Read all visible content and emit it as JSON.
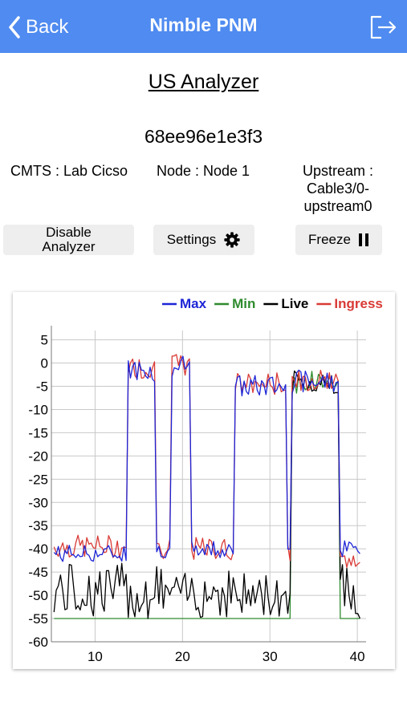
{
  "navbar": {
    "back_label": "Back",
    "title": "Nimble PNM",
    "back_icon": "chevron-left-icon",
    "logout_icon": "logout-icon",
    "background_color": "#4f8bf0"
  },
  "page": {
    "title": "US Analyzer",
    "device_id": "68ee96e1e3f3"
  },
  "info": {
    "cmts": "CMTS : Lab Cicso",
    "node": "Node : Node 1",
    "upstream_line1": "Upstream :",
    "upstream_line2": "Cable3/0-",
    "upstream_line3": "upstream0"
  },
  "buttons": {
    "disable_line1": "Disable",
    "disable_line2": "Analyzer",
    "settings": "Settings",
    "settings_icon": "gear-icon",
    "freeze": "Freeze",
    "freeze_icon": "pause-icon"
  },
  "chart_data": {
    "type": "line",
    "xlim": [
      5,
      41
    ],
    "ylim": [
      -60,
      7
    ],
    "x_ticks": [
      10,
      20,
      30,
      40
    ],
    "y_ticks": [
      5,
      0,
      -5,
      -10,
      -15,
      -20,
      -25,
      -30,
      -35,
      -40,
      -45,
      -50,
      -55,
      -60
    ],
    "grid": true,
    "legend_position": "top-right",
    "series": [
      {
        "name": "Max",
        "color": "#1d25d6"
      },
      {
        "name": "Min",
        "color": "#2e8b2e"
      },
      {
        "name": "Live",
        "color": "#000000"
      },
      {
        "name": "Ingress",
        "color": "#d93a36"
      }
    ],
    "shape": {
      "start": 5.3,
      "end": 40.5,
      "step": 0.25,
      "noise_floor": -55,
      "carriers": [
        {
          "start": 13.8,
          "end": 17.0,
          "level": -1.5
        },
        {
          "start": 18.8,
          "end": 20.8,
          "level": -1.0
        },
        {
          "start": 26.0,
          "end": 32.0,
          "level": -5.0
        },
        {
          "start": 32.5,
          "end": 38.0,
          "level": -4.0
        }
      ],
      "ingress_floor": [
        {
          "from": 5.3,
          "to": 13.8,
          "level": -39.5
        },
        {
          "from": 32.5,
          "to": 40.5,
          "level": -43.0
        }
      ],
      "max_floor": [
        {
          "from": 5.3,
          "to": 13.8,
          "level": -41.0
        },
        {
          "from": 32.5,
          "to": 38.0,
          "level": -55.0
        },
        {
          "from": 38.0,
          "to": 40.5,
          "level": -40.0
        }
      ]
    }
  }
}
